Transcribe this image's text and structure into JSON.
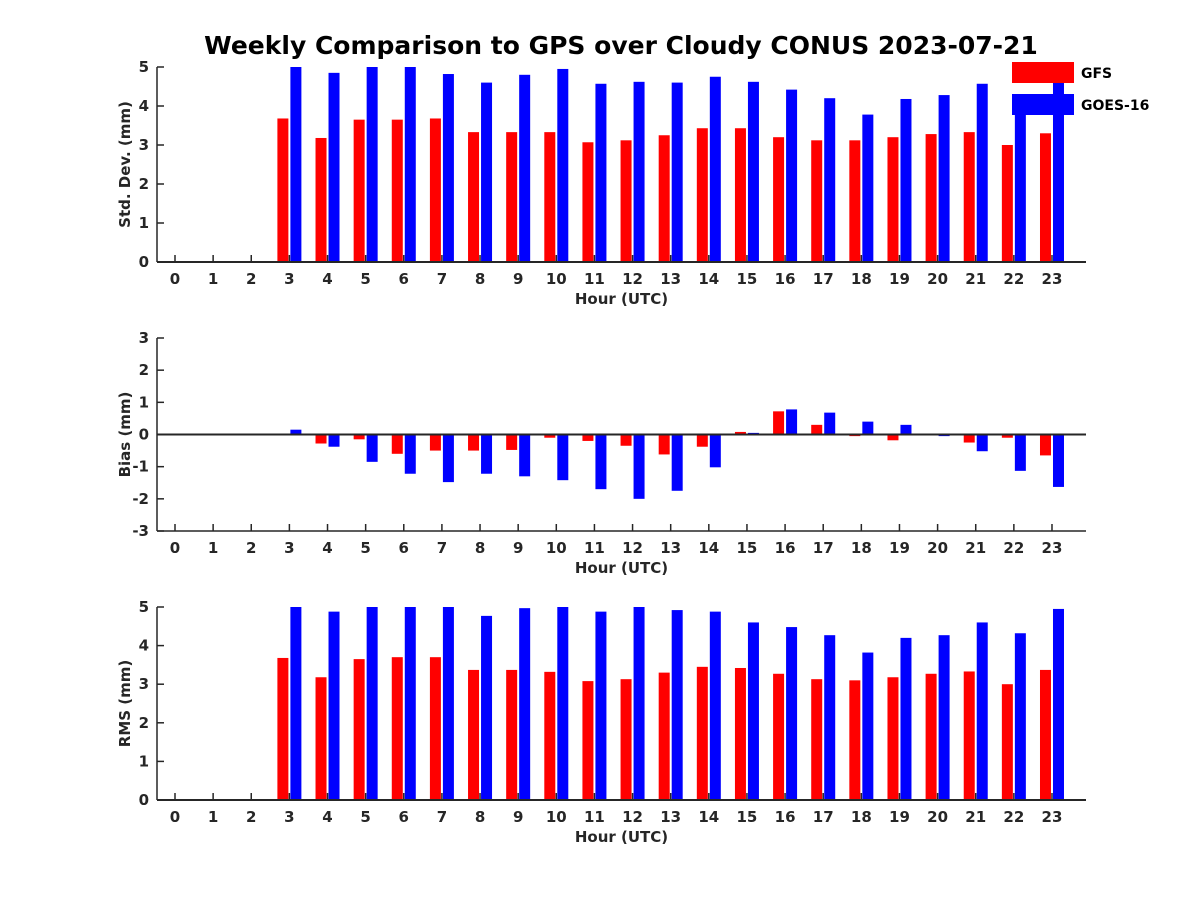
{
  "title": "Weekly Comparison to GPS over Cloudy CONUS 2023-07-21",
  "colors": {
    "GFS": "#ff0000",
    "GOES-16": "#0000ff",
    "axis": "#262626"
  },
  "chart_data": [
    {
      "type": "bar",
      "categories": [
        "0",
        "1",
        "2",
        "3",
        "4",
        "5",
        "6",
        "7",
        "8",
        "9",
        "10",
        "11",
        "12",
        "13",
        "14",
        "15",
        "16",
        "17",
        "18",
        "19",
        "20",
        "21",
        "22",
        "23"
      ],
      "xlabel": "Hour (UTC)",
      "ylabel": "Std. Dev. (mm)",
      "ylim": [
        0,
        5
      ],
      "yticks": [
        "0",
        "1",
        "2",
        "3",
        "4",
        "5"
      ],
      "series": [
        {
          "name": "GFS",
          "values": [
            null,
            null,
            null,
            3.68,
            3.18,
            3.65,
            3.65,
            3.68,
            3.33,
            3.33,
            3.33,
            3.07,
            3.12,
            3.25,
            3.43,
            3.43,
            3.2,
            3.12,
            3.12,
            3.2,
            3.28,
            3.33,
            3.0,
            3.3
          ]
        },
        {
          "name": "GOES-16",
          "values": [
            null,
            null,
            null,
            5.0,
            4.85,
            5.0,
            5.0,
            4.82,
            4.6,
            4.8,
            4.95,
            4.57,
            4.62,
            4.6,
            4.75,
            4.62,
            4.42,
            4.2,
            3.78,
            4.18,
            4.28,
            4.57,
            4.15,
            4.8
          ]
        }
      ],
      "legend": {
        "placement": "top-right",
        "entries": [
          "GFS",
          "GOES-16"
        ]
      }
    },
    {
      "type": "bar",
      "categories": [
        "0",
        "1",
        "2",
        "3",
        "4",
        "5",
        "6",
        "7",
        "8",
        "9",
        "10",
        "11",
        "12",
        "13",
        "14",
        "15",
        "16",
        "17",
        "18",
        "19",
        "20",
        "21",
        "22",
        "23"
      ],
      "xlabel": "Hour (UTC)",
      "ylabel": "Bias (mm)",
      "ylim": [
        -3,
        3
      ],
      "yticks": [
        "-3",
        "-2",
        "-1",
        "0",
        "1",
        "2",
        "3"
      ],
      "series": [
        {
          "name": "GFS",
          "values": [
            null,
            null,
            null,
            0.0,
            -0.28,
            -0.15,
            -0.6,
            -0.5,
            -0.5,
            -0.48,
            -0.1,
            -0.2,
            -0.35,
            -0.62,
            -0.38,
            0.08,
            0.72,
            0.3,
            -0.05,
            -0.18,
            -0.02,
            -0.25,
            -0.1,
            -0.65
          ]
        },
        {
          "name": "GOES-16",
          "values": [
            null,
            null,
            null,
            0.15,
            -0.38,
            -0.85,
            -1.22,
            -1.48,
            -1.22,
            -1.3,
            -1.42,
            -1.7,
            -2.0,
            -1.75,
            -1.02,
            0.05,
            0.78,
            0.68,
            0.4,
            0.3,
            -0.05,
            -0.52,
            -1.13,
            -1.63
          ]
        }
      ]
    },
    {
      "type": "bar",
      "categories": [
        "0",
        "1",
        "2",
        "3",
        "4",
        "5",
        "6",
        "7",
        "8",
        "9",
        "10",
        "11",
        "12",
        "13",
        "14",
        "15",
        "16",
        "17",
        "18",
        "19",
        "20",
        "21",
        "22",
        "23"
      ],
      "xlabel": "Hour (UTC)",
      "ylabel": "RMS (mm)",
      "ylim": [
        0,
        5
      ],
      "yticks": [
        "0",
        "1",
        "2",
        "3",
        "4",
        "5"
      ],
      "series": [
        {
          "name": "GFS",
          "values": [
            null,
            null,
            null,
            3.68,
            3.18,
            3.65,
            3.7,
            3.7,
            3.37,
            3.37,
            3.32,
            3.08,
            3.13,
            3.3,
            3.45,
            3.42,
            3.27,
            3.13,
            3.1,
            3.18,
            3.27,
            3.33,
            3.0,
            3.37
          ]
        },
        {
          "name": "GOES-16",
          "values": [
            null,
            null,
            null,
            5.0,
            4.88,
            5.0,
            5.0,
            5.0,
            4.77,
            4.97,
            5.0,
            4.88,
            5.0,
            4.92,
            4.88,
            4.6,
            4.48,
            4.27,
            3.82,
            4.2,
            4.27,
            4.6,
            4.32,
            4.95
          ]
        }
      ]
    }
  ]
}
